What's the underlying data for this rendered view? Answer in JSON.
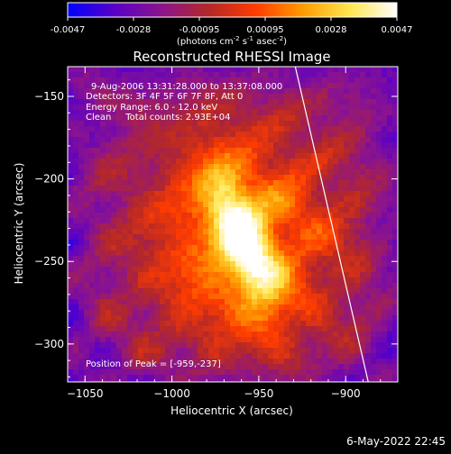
{
  "chart_data": {
    "type": "heatmap",
    "title": "Reconstructed RHESSI Image",
    "colorbar": {
      "ticks": [
        "-0.0047",
        "-0.0028",
        "-0.00095",
        "0.00095",
        "0.0028",
        "0.0047"
      ],
      "unit_label": "(photons cm-2 s-1 asec-2)",
      "unit_main": "(photons cm",
      "unit_exp1": "-2",
      "unit_s": " s",
      "unit_exp2": "-1",
      "unit_asec": " asec",
      "unit_exp3": "-2",
      "unit_close": ")",
      "range": [
        -0.0047,
        0.0047
      ],
      "colormap": [
        "#0000ff",
        "#5a00c8",
        "#8c148c",
        "#b42828",
        "#ff3c00",
        "#ff9b00",
        "#ffe650",
        "#ffffff"
      ]
    },
    "xlabel": "Heliocentric X (arcsec)",
    "ylabel": "Heliocentric Y (arcsec)",
    "xlim": [
      -1060,
      -870
    ],
    "ylim": [
      -323,
      -132
    ],
    "x_ticks": [
      {
        "value": -1050,
        "label": "−1050"
      },
      {
        "value": -1000,
        "label": "−1000"
      },
      {
        "value": -950,
        "label": "−950"
      },
      {
        "value": -900,
        "label": "−900"
      }
    ],
    "y_ticks": [
      {
        "value": -150,
        "label": "−150"
      },
      {
        "value": -200,
        "label": "−200"
      },
      {
        "value": -250,
        "label": "−250"
      },
      {
        "value": -300,
        "label": "−300"
      }
    ],
    "annotations": {
      "time": "9-Aug-2006 13:31:28.000 to 13:37:08.000",
      "detectors": "Detectors: 3F 4F 5F 6F 7F 8F, Att 0",
      "energy": "Energy Range: 6.0 - 12.0 keV",
      "clean": "Clean     Total counts: 2.93E+04",
      "peak": "Position of Peak = [-959,-237]"
    },
    "peak": {
      "x": -959,
      "y": -237
    },
    "limb": [
      {
        "x": -929,
        "y": -132
      },
      {
        "x": -887,
        "y": -323
      }
    ]
  },
  "footer": {
    "date": "6-May-2022 22:45"
  }
}
